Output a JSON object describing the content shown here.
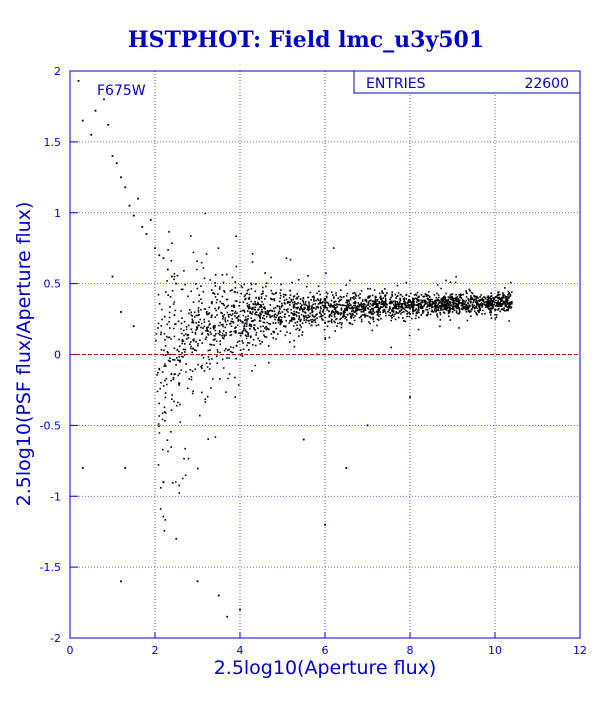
{
  "chart_data": {
    "type": "scatter",
    "title": "HSTPHOT: Field lmc_u3y501",
    "xlabel": "2.5log10(Aperture flux)",
    "ylabel": "2.5log10(PSF flux/Aperture flux)",
    "xlim": [
      0,
      12
    ],
    "ylim": [
      -2,
      2
    ],
    "x_ticks": [
      "0",
      "2",
      "4",
      "6",
      "8",
      "10",
      "12"
    ],
    "y_ticks": [
      "-2",
      "-1.5",
      "-1",
      "-0.5",
      "0",
      "0.5",
      "1",
      "1.5",
      "2"
    ],
    "grid": true,
    "reference_line": {
      "y": 0,
      "color": "#cc0000",
      "style": "dashed"
    },
    "annotation": "F675W",
    "stats_box": {
      "label": "ENTRIES",
      "value": "22600",
      "placement": "top-right"
    },
    "series": [
      {
        "color": "#000000",
        "entries": 22600,
        "points": [
          [
            0.2,
            1.93
          ],
          [
            0.3,
            1.65
          ],
          [
            0.5,
            1.55
          ],
          [
            0.6,
            1.72
          ],
          [
            0.8,
            1.8
          ],
          [
            0.9,
            1.62
          ],
          [
            1.0,
            1.4
          ],
          [
            1.1,
            1.35
          ],
          [
            1.2,
            1.25
          ],
          [
            1.3,
            1.18
          ],
          [
            1.4,
            1.05
          ],
          [
            1.5,
            0.98
          ],
          [
            1.6,
            1.1
          ],
          [
            1.7,
            0.9
          ],
          [
            1.8,
            0.85
          ],
          [
            1.9,
            0.95
          ],
          [
            2.0,
            0.75
          ],
          [
            2.1,
            0.7
          ],
          [
            2.2,
            0.68
          ],
          [
            2.3,
            0.6
          ],
          [
            2.4,
            0.55
          ],
          [
            2.5,
            0.5
          ],
          [
            1.0,
            0.55
          ],
          [
            1.2,
            0.3
          ],
          [
            1.5,
            0.2
          ],
          [
            1.3,
            -0.8
          ],
          [
            0.3,
            -0.8
          ],
          [
            1.2,
            -1.6
          ],
          [
            2.2,
            -0.9
          ],
          [
            2.5,
            -1.3
          ],
          [
            3.0,
            -1.6
          ],
          [
            3.5,
            -1.7
          ],
          [
            3.7,
            -1.85
          ],
          [
            4.0,
            -1.8
          ],
          [
            6.5,
            -0.8
          ],
          [
            6.0,
            -1.2
          ],
          [
            5.5,
            -0.6
          ],
          [
            7.0,
            -0.5
          ],
          [
            8.0,
            -0.3
          ]
        ]
      }
    ]
  }
}
